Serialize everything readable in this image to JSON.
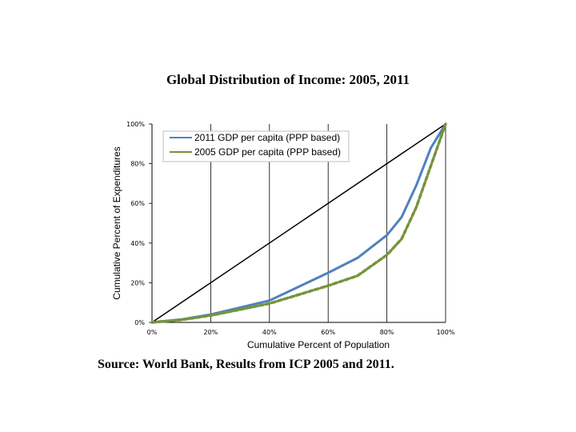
{
  "slide": {
    "title": "Global Distribution of Income: 2005, 2011",
    "source": "Source: World Bank, Results from ICP 2005 and 2011."
  },
  "chart_data": {
    "type": "line",
    "xlabel": "Cumulative Percent of Population",
    "ylabel": "Cumulative Percent of Expenditures",
    "xlim": [
      0,
      100
    ],
    "ylim": [
      0,
      100
    ],
    "x_ticks": [
      "0%",
      "20%",
      "40%",
      "60%",
      "80%",
      "100%"
    ],
    "y_ticks": [
      "0%",
      "20%",
      "40%",
      "60%",
      "80%",
      "100%"
    ],
    "grid": "vertical",
    "legend_position": "top-left inside plot",
    "series": [
      {
        "name": "2011 GDP per capita (PPP based)",
        "color": "#4f81bd",
        "style": "solid",
        "x": [
          0,
          10,
          20,
          30,
          40,
          50,
          60,
          70,
          80,
          85,
          90,
          95,
          100
        ],
        "y": [
          0,
          1.5,
          4,
          7.5,
          11,
          18,
          25,
          32.5,
          44,
          53,
          69,
          88,
          100
        ]
      },
      {
        "name": "2005 GDP per capita (PPP based)",
        "color": "#77933c",
        "style": "dashed",
        "x": [
          0,
          10,
          20,
          30,
          40,
          50,
          60,
          70,
          80,
          85,
          90,
          95,
          100
        ],
        "y": [
          0,
          1.3,
          3.5,
          6.5,
          9.5,
          14,
          18.5,
          23.5,
          34,
          42,
          58,
          79,
          100
        ]
      },
      {
        "name": "",
        "color": "#000000",
        "style": "solid",
        "x": [
          0,
          100
        ],
        "y": [
          0,
          100
        ]
      }
    ]
  }
}
